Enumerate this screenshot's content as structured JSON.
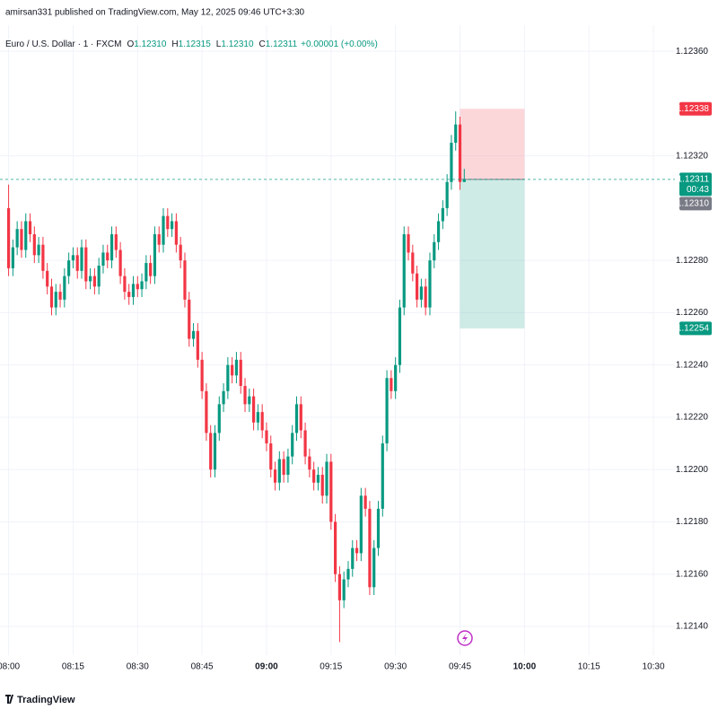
{
  "header": {
    "title": "amirsan331 published on TradingView.com, May 12, 2025 09:46 UTC+3:30"
  },
  "footer": {
    "brand": "TradingView"
  },
  "chart_data": {
    "type": "candlestick",
    "legend": {
      "symbol": "Euro / U.S. Dollar · 1 · FXCM",
      "items": [
        {
          "key": "O",
          "text": "1.12310"
        },
        {
          "key": "H",
          "text": "1.12315"
        },
        {
          "key": "L",
          "text": "1.12310"
        },
        {
          "key": "C",
          "text": "1.12311"
        }
      ],
      "change": "+0.00001 (+0.00%)"
    },
    "up_color": "#089981",
    "down_color": "#f23645",
    "x": [
      "08:00",
      "08:01",
      "08:02",
      "08:03",
      "08:04",
      "08:05",
      "08:06",
      "08:07",
      "08:08",
      "08:09",
      "08:10",
      "08:11",
      "08:12",
      "08:13",
      "08:14",
      "08:15",
      "08:16",
      "08:17",
      "08:18",
      "08:19",
      "08:20",
      "08:21",
      "08:22",
      "08:23",
      "08:24",
      "08:25",
      "08:26",
      "08:27",
      "08:28",
      "08:29",
      "08:30",
      "08:31",
      "08:32",
      "08:33",
      "08:34",
      "08:35",
      "08:36",
      "08:37",
      "08:38",
      "08:39",
      "08:40",
      "08:41",
      "08:42",
      "08:43",
      "08:44",
      "08:45",
      "08:46",
      "08:47",
      "08:48",
      "08:49",
      "08:50",
      "08:51",
      "08:52",
      "08:53",
      "08:54",
      "08:55",
      "08:56",
      "08:57",
      "08:58",
      "08:59",
      "09:00",
      "09:01",
      "09:02",
      "09:03",
      "09:04",
      "09:05",
      "09:06",
      "09:07",
      "09:08",
      "09:09",
      "09:10",
      "09:11",
      "09:12",
      "09:13",
      "09:14",
      "09:15",
      "09:16",
      "09:17",
      "09:18",
      "09:19",
      "09:20",
      "09:21",
      "09:22",
      "09:23",
      "09:24",
      "09:25",
      "09:26",
      "09:27",
      "09:28",
      "09:29",
      "09:30",
      "09:31",
      "09:32",
      "09:33",
      "09:34",
      "09:35",
      "09:36",
      "09:37",
      "09:38",
      "09:39",
      "09:40",
      "09:41",
      "09:42",
      "09:43",
      "09:44",
      "09:45",
      "09:46"
    ],
    "open": [
      1.123,
      1.12277,
      1.12285,
      1.12292,
      1.12284,
      1.12295,
      1.1229,
      1.12282,
      1.12286,
      1.12276,
      1.1227,
      1.12262,
      1.12268,
      1.12265,
      1.12274,
      1.1228,
      1.12282,
      1.12276,
      1.12285,
      1.12272,
      1.12274,
      1.1227,
      1.12278,
      1.12283,
      1.1228,
      1.1229,
      1.12284,
      1.12274,
      1.12268,
      1.12266,
      1.12271,
      1.12269,
      1.12272,
      1.12279,
      1.12274,
      1.1229,
      1.12286,
      1.12297,
      1.12292,
      1.12295,
      1.12286,
      1.1228,
      1.12265,
      1.1225,
      1.12253,
      1.12242,
      1.1223,
      1.12214,
      1.122,
      1.12214,
      1.12225,
      1.1223,
      1.1224,
      1.12236,
      1.12242,
      1.12232,
      1.12225,
      1.12228,
      1.12218,
      1.12222,
      1.12215,
      1.1221,
      1.122,
      1.12195,
      1.12204,
      1.12198,
      1.12205,
      1.12214,
      1.12225,
      1.12215,
      1.12205,
      1.122,
      1.12195,
      1.12198,
      1.1219,
      1.12203,
      1.1218,
      1.1216,
      1.1215,
      1.12158,
      1.12162,
      1.1217,
      1.12168,
      1.1219,
      1.12185,
      1.12155,
      1.1217,
      1.12185,
      1.1221,
      1.12235,
      1.1223,
      1.1224,
      1.12262,
      1.1229,
      1.12283,
      1.12275,
      1.12265,
      1.1227,
      1.12262,
      1.1228,
      1.12287,
      1.12295,
      1.123,
      1.1231,
      1.12325,
      1.12332,
      1.1231
    ],
    "high": [
      1.12309,
      1.12288,
      1.12295,
      1.12295,
      1.12298,
      1.12298,
      1.12293,
      1.12289,
      1.12289,
      1.12279,
      1.12273,
      1.12271,
      1.12271,
      1.12277,
      1.12283,
      1.12285,
      1.12285,
      1.12288,
      1.12288,
      1.12277,
      1.12277,
      1.12281,
      1.12286,
      1.12286,
      1.12293,
      1.12293,
      1.12287,
      1.12277,
      1.12271,
      1.12274,
      1.12274,
      1.12275,
      1.12282,
      1.12282,
      1.12293,
      1.12293,
      1.123,
      1.123,
      1.12298,
      1.12298,
      1.12289,
      1.12283,
      1.12268,
      1.12256,
      1.12256,
      1.12245,
      1.12233,
      1.12217,
      1.12217,
      1.12228,
      1.12233,
      1.12243,
      1.12243,
      1.12245,
      1.12245,
      1.12235,
      1.12231,
      1.12231,
      1.12225,
      1.12225,
      1.12218,
      1.12213,
      1.12203,
      1.12207,
      1.12207,
      1.12208,
      1.12217,
      1.12228,
      1.12228,
      1.12218,
      1.12208,
      1.12203,
      1.12201,
      1.12201,
      1.12206,
      1.12206,
      1.12183,
      1.12163,
      1.12161,
      1.12165,
      1.12173,
      1.12173,
      1.12193,
      1.12193,
      1.12188,
      1.12173,
      1.12188,
      1.12213,
      1.12238,
      1.12238,
      1.12243,
      1.12265,
      1.12293,
      1.12293,
      1.12286,
      1.12278,
      1.12273,
      1.12273,
      1.12283,
      1.1229,
      1.12298,
      1.12303,
      1.12313,
      1.12328,
      1.12337,
      1.12335,
      1.12315
    ],
    "low": [
      1.12274,
      1.12274,
      1.12282,
      1.12281,
      1.12281,
      1.12287,
      1.12279,
      1.12279,
      1.12273,
      1.12267,
      1.12259,
      1.12259,
      1.12262,
      1.12262,
      1.12271,
      1.12277,
      1.12273,
      1.12273,
      1.12269,
      1.12269,
      1.12267,
      1.12267,
      1.12275,
      1.12277,
      1.12277,
      1.12281,
      1.12271,
      1.12265,
      1.12263,
      1.12263,
      1.12266,
      1.12266,
      1.12269,
      1.12271,
      1.12271,
      1.12283,
      1.12283,
      1.12289,
      1.12289,
      1.12283,
      1.12277,
      1.12262,
      1.12247,
      1.12247,
      1.12239,
      1.12227,
      1.12211,
      1.12197,
      1.12197,
      1.12211,
      1.12222,
      1.12227,
      1.12233,
      1.12233,
      1.12229,
      1.12222,
      1.12222,
      1.12215,
      1.12215,
      1.12212,
      1.12207,
      1.12197,
      1.12192,
      1.12192,
      1.12195,
      1.12195,
      1.12202,
      1.12211,
      1.12212,
      1.12202,
      1.12197,
      1.12192,
      1.12192,
      1.12187,
      1.12187,
      1.12177,
      1.12157,
      1.12134,
      1.12147,
      1.12155,
      1.12159,
      1.12165,
      1.12165,
      1.12182,
      1.12152,
      1.12152,
      1.12167,
      1.12182,
      1.12207,
      1.12227,
      1.12227,
      1.12237,
      1.12259,
      1.1228,
      1.12272,
      1.12262,
      1.12262,
      1.12259,
      1.12259,
      1.12277,
      1.12284,
      1.12292,
      1.12297,
      1.12307,
      1.12322,
      1.12307,
      1.1231
    ],
    "close": [
      1.12277,
      1.12285,
      1.12292,
      1.12284,
      1.12295,
      1.1229,
      1.12282,
      1.12286,
      1.12276,
      1.1227,
      1.12262,
      1.12268,
      1.12265,
      1.12274,
      1.1228,
      1.12282,
      1.12276,
      1.12285,
      1.12272,
      1.12274,
      1.1227,
      1.12278,
      1.12283,
      1.1228,
      1.1229,
      1.12284,
      1.12274,
      1.12268,
      1.12266,
      1.12271,
      1.12269,
      1.12272,
      1.12279,
      1.12274,
      1.1229,
      1.12286,
      1.12297,
      1.12292,
      1.12295,
      1.12286,
      1.1228,
      1.12265,
      1.1225,
      1.12253,
      1.12242,
      1.1223,
      1.12214,
      1.122,
      1.12214,
      1.12225,
      1.1223,
      1.1224,
      1.12236,
      1.12242,
      1.12232,
      1.12225,
      1.12228,
      1.12218,
      1.12222,
      1.12215,
      1.1221,
      1.122,
      1.12195,
      1.12204,
      1.12198,
      1.12205,
      1.12214,
      1.12225,
      1.12215,
      1.12205,
      1.122,
      1.12195,
      1.12198,
      1.1219,
      1.12203,
      1.1218,
      1.1216,
      1.1215,
      1.12158,
      1.12162,
      1.1217,
      1.12168,
      1.1219,
      1.12185,
      1.12155,
      1.1217,
      1.12185,
      1.1221,
      1.12235,
      1.1223,
      1.1224,
      1.12262,
      1.1229,
      1.12283,
      1.12275,
      1.12265,
      1.1227,
      1.12262,
      1.1228,
      1.12287,
      1.12295,
      1.123,
      1.1231,
      1.12325,
      1.12332,
      1.1231,
      1.12311
    ],
    "xlim": [
      "07:58",
      "10:35"
    ],
    "xticks": [
      "08:00",
      "08:15",
      "08:30",
      "08:45",
      "09:00",
      "09:15",
      "09:30",
      "09:45",
      "10:00",
      "10:15",
      "10:30"
    ],
    "bold_xticks": [
      "09:00",
      "10:00"
    ],
    "ylim": [
      1.12129,
      1.1237
    ],
    "yticks": [
      {
        "value": 1.1236,
        "label": "1.12360"
      },
      {
        "value": 1.1232,
        "label": "1.12320"
      },
      {
        "value": 1.1228,
        "label": "1.12280"
      },
      {
        "value": 1.1226,
        "label": "1.12260"
      },
      {
        "value": 1.1224,
        "label": "1.12240"
      },
      {
        "value": 1.1222,
        "label": "1.12220"
      },
      {
        "value": 1.122,
        "label": "1.12200"
      },
      {
        "value": 1.1218,
        "label": "1.12180"
      },
      {
        "value": 1.1216,
        "label": "1.12160"
      },
      {
        "value": 1.1214,
        "label": "1.12140"
      }
    ],
    "grid": true,
    "position": {
      "entry": 1.12311,
      "stop": 1.12338,
      "target": 1.12254,
      "start": "09:45",
      "end": "10:00"
    },
    "price_labels": [
      {
        "value": 1.12338,
        "label": "1.12338",
        "color": "#f23645"
      },
      {
        "value": 1.12311,
        "label": "1.12311",
        "sub": "00:43",
        "color": "#089981"
      },
      {
        "value": 1.1231,
        "label": "1.12310",
        "color": "#787b86"
      },
      {
        "value": 1.12254,
        "label": "1.12254",
        "color": "#089981"
      }
    ]
  }
}
